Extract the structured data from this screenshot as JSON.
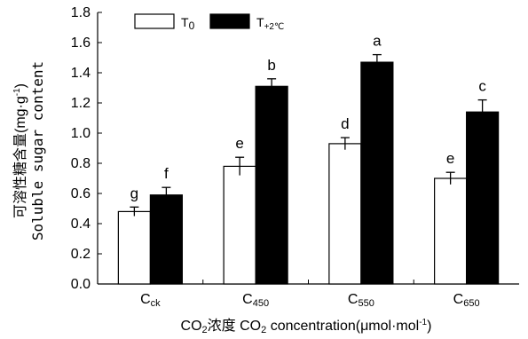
{
  "chart_data": {
    "type": "bar",
    "categories": [
      {
        "main": "C",
        "sub": "ck"
      },
      {
        "main": "C",
        "sub": "450"
      },
      {
        "main": "C",
        "sub": "550"
      },
      {
        "main": "C",
        "sub": "650"
      }
    ],
    "series": [
      {
        "name_main": "T",
        "name_sub": "0",
        "color": "#ffffff",
        "values": [
          0.48,
          0.78,
          0.93,
          0.7
        ],
        "errors": [
          0.03,
          0.06,
          0.04,
          0.04
        ],
        "labels": [
          "g",
          "e",
          "d",
          "e"
        ]
      },
      {
        "name_main": "T",
        "name_sub": "+2℃",
        "color": "#000000",
        "values": [
          0.59,
          1.31,
          1.47,
          1.14
        ],
        "errors": [
          0.05,
          0.05,
          0.05,
          0.08
        ],
        "labels": [
          "f",
          "b",
          "a",
          "c"
        ]
      }
    ],
    "ylim": [
      0,
      1.8
    ],
    "yticks": [
      "0.0",
      "0.2",
      "0.4",
      "0.6",
      "0.8",
      "1.0",
      "1.2",
      "1.4",
      "1.6",
      "1.8"
    ],
    "ylabel_cn": "可溶性糖含量(mg·g",
    "ylabel_cn_sup": "-1",
    "ylabel_cn_close": ")",
    "ylabel_en": "Soluble sugar content",
    "xlabel_a": "CO",
    "xlabel_a_sub": "2",
    "xlabel_b": "浓度 CO",
    "xlabel_b_sub": "2",
    "xlabel_c": " concentration(μmol·mol",
    "xlabel_c_sup": "-1",
    "xlabel_c_close": ")",
    "legend_position": "top-left",
    "grid": false
  }
}
